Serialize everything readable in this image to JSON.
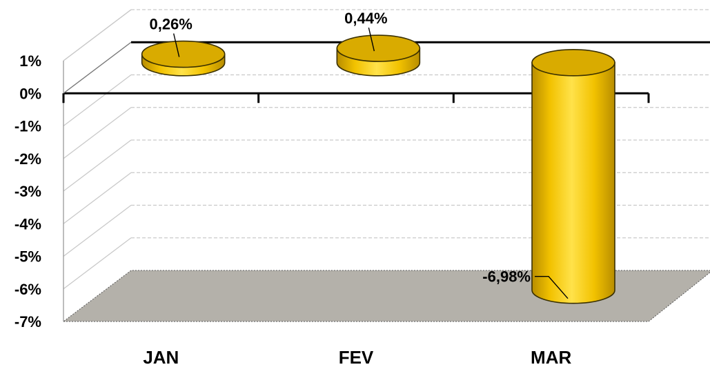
{
  "chart_data": {
    "type": "bar",
    "style": "3d-cylinder",
    "categories": [
      "JAN",
      "FEV",
      "MAR"
    ],
    "values": [
      0.26,
      0.44,
      -6.98
    ],
    "data_labels": [
      "0,26%",
      "0,44%",
      "-6,98%"
    ],
    "y_tick_labels": [
      "1%",
      "0%",
      "-1%",
      "-2%",
      "-3%",
      "-4%",
      "-5%",
      "-6%",
      "-7%"
    ],
    "y_ticks": [
      1,
      0,
      -1,
      -2,
      -3,
      -4,
      -5,
      -6,
      -7
    ],
    "ylim": [
      -7,
      1
    ],
    "grid": true,
    "legend": "none",
    "colors": {
      "bar_fill": "#f2c200",
      "bar_light": "#ffe24a",
      "bar_dark": "#c79a00",
      "bar_top": "#d9ab00",
      "bar_outline": "#3a3000",
      "floor": "#b4b1aa",
      "grid": "#c9c9c9",
      "axis": "#000000"
    }
  }
}
